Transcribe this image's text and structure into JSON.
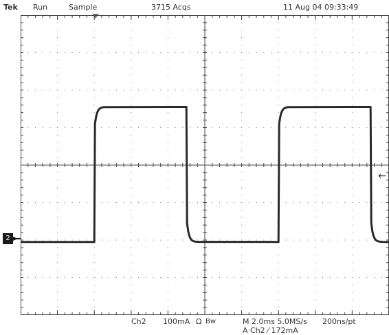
{
  "status_bar": {
    "brand": "Tek",
    "run_state": "Run",
    "acq_mode": "Sample",
    "acquisitions": "3715 Acqs",
    "datetime": "11 Aug 04 09:33:49"
  },
  "channel_marker": {
    "label": "2"
  },
  "trigger_level_marker": "←",
  "readouts": {
    "channel": "Ch2",
    "scale": "100mA",
    "coupling_symbol": "Ω",
    "bandwidth_symbol": "Bw",
    "timebase": "M 2.0ms 5.0MS/s",
    "trigger": "A  Ch2  ⁄  172mA",
    "resolution": "200ns/pt"
  },
  "graticule": {
    "divisions_x": 10,
    "divisions_y": 8,
    "minor_per_division": 5
  },
  "waveform": {
    "channel": "Ch2",
    "period_divisions": 5.0,
    "low_level_divisions": -2.05,
    "high_level_divisions": 1.55,
    "rising_edges_divisions": [
      2.0,
      7.0
    ],
    "falling_edges_divisions": [
      4.5,
      9.5
    ],
    "trace_color": "#2a2a2a"
  },
  "colors": {
    "graticule": "#444444",
    "background": "#ffffff"
  }
}
